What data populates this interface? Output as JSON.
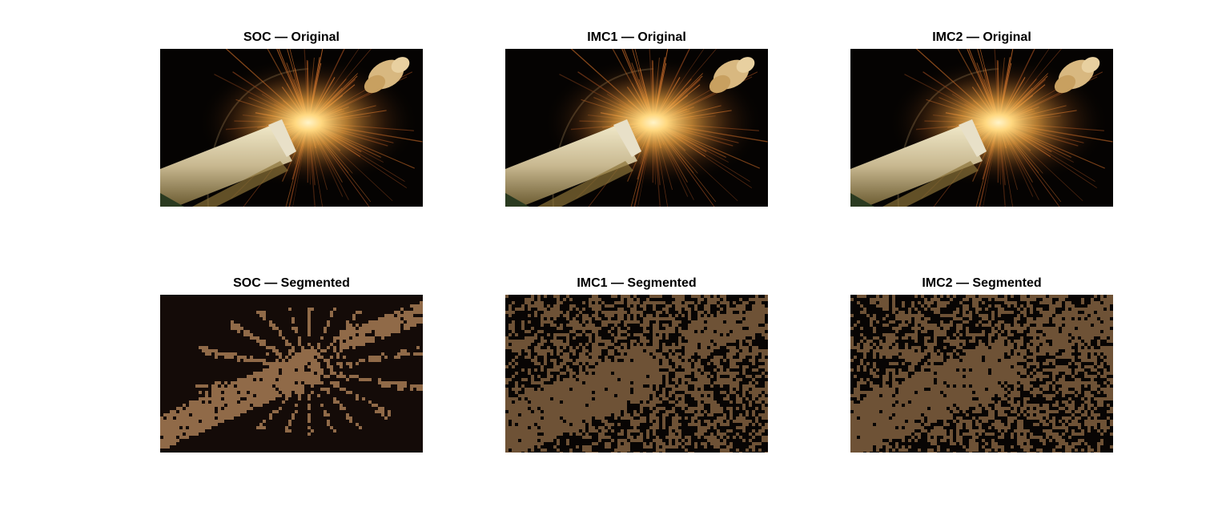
{
  "figure": {
    "panels": [
      {
        "title": "SOC — Original",
        "kind": "original"
      },
      {
        "title": "IMC1 — Original",
        "kind": "original"
      },
      {
        "title": "IMC2 — Original",
        "kind": "original"
      },
      {
        "title": "SOC — Segmented",
        "kind": "segmented"
      },
      {
        "title": "IMC1 — Segmented",
        "kind": "segmented"
      },
      {
        "title": "IMC2 — Segmented",
        "kind": "segmented"
      }
    ],
    "colors": {
      "original_background": "#050302",
      "spark_core": "#fff4c8",
      "spark_mid": "#e8a040",
      "spark_outer": "#8a4a1a",
      "bottle": "#c8b890",
      "bottle_dark": "#6a5a30",
      "cork": "#d8b880",
      "soc_dark": "#140b08",
      "soc_fg": "#906a48",
      "imc_dark": "#080504",
      "imc_fg": "#6e5236"
    }
  }
}
